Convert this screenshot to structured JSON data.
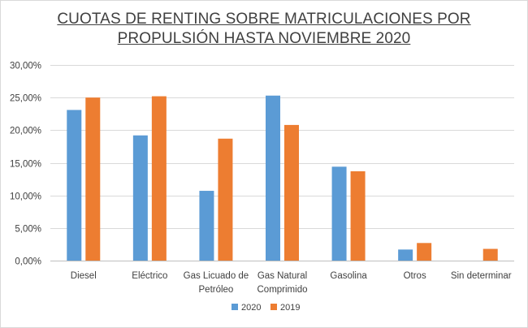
{
  "chart_data": {
    "type": "bar",
    "title_lines": [
      "CUOTAS DE RENTING SOBRE MATRICULACIONES POR",
      "PROPULSIÓN HASTA NOVIEMBRE 2020"
    ],
    "categories": [
      [
        "Diesel"
      ],
      [
        "Eléctrico"
      ],
      [
        "Gas Licuado de",
        "Petróleo"
      ],
      [
        "Gas Natural",
        "Comprimido"
      ],
      [
        "Gasolina"
      ],
      [
        "Otros"
      ],
      [
        "Sin determinar"
      ]
    ],
    "series": [
      {
        "name": "2020",
        "color": "#5b9bd5",
        "values": [
          23.1,
          19.2,
          10.7,
          25.3,
          14.4,
          1.7,
          0
        ]
      },
      {
        "name": "2019",
        "color": "#ed7d31",
        "values": [
          25.0,
          25.2,
          18.7,
          20.8,
          13.7,
          2.7,
          1.8
        ]
      }
    ],
    "ylim": [
      0,
      30
    ],
    "yticks": [
      "0,00%",
      "5,00%",
      "10,00%",
      "15,00%",
      "20,00%",
      "25,00%",
      "30,00%"
    ],
    "grid": true,
    "legend_position": "bottom"
  }
}
